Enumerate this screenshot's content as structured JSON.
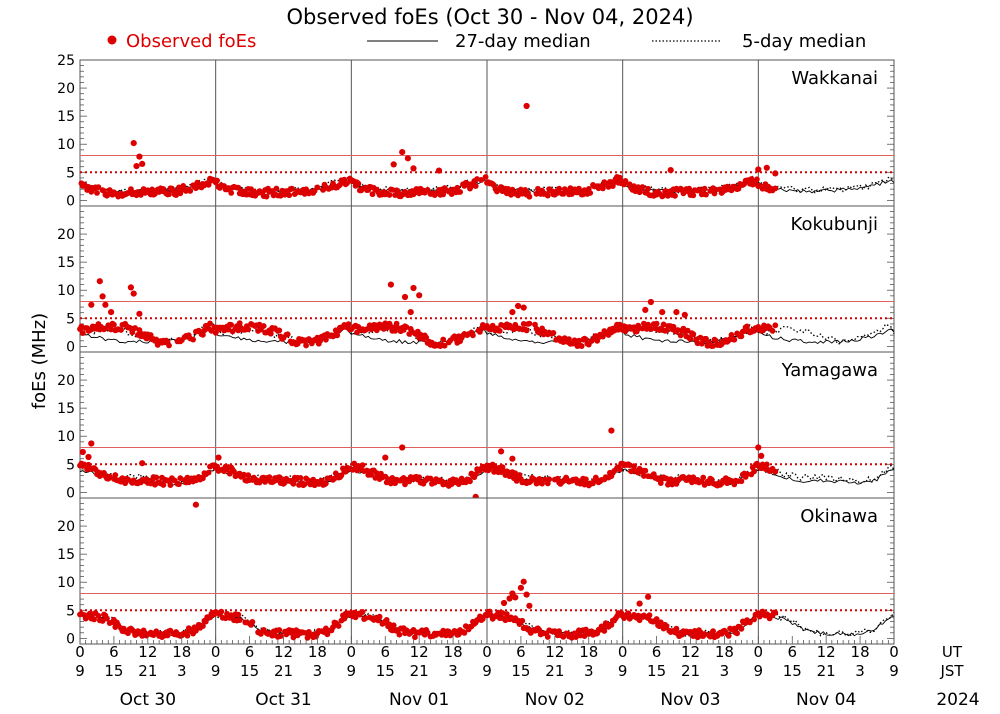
{
  "chart_data": {
    "type": "scatter",
    "title": "Observed foEs (Oct 30 - Nov 04, 2024)",
    "ylabel": "foEs (MHz)",
    "ylim": [
      -1,
      25
    ],
    "ytick_labels_top": [
      "0",
      "5",
      "10",
      "15",
      "20",
      "25"
    ],
    "ytick_labels_other": [
      "0",
      "5",
      "10",
      "15",
      "20"
    ],
    "ytick_values_top": [
      0,
      5,
      10,
      15,
      20,
      25
    ],
    "ytick_values_other": [
      0,
      5,
      10,
      15,
      20
    ],
    "reference_lines": [
      {
        "value": 8,
        "style": "solid",
        "color": "#e06060"
      },
      {
        "value": 5,
        "style": "dotted",
        "color": "#d00000"
      }
    ],
    "xlim_hours": [
      0,
      144
    ],
    "ut_tick_labels": [
      "0",
      "6",
      "12",
      "18",
      "0",
      "6",
      "12",
      "18",
      "0",
      "6",
      "12",
      "18",
      "0",
      "6",
      "12",
      "18",
      "0",
      "6",
      "12",
      "18",
      "0",
      "6",
      "12",
      "18",
      "0"
    ],
    "jst_tick_labels": [
      "9",
      "15",
      "21",
      "3",
      "9",
      "15",
      "21",
      "3",
      "9",
      "15",
      "21",
      "3",
      "9",
      "15",
      "21",
      "3",
      "9",
      "15",
      "21",
      "3",
      "9",
      "15",
      "21",
      "3",
      "9"
    ],
    "ut_label": "UT",
    "jst_label": "JST",
    "dates": [
      "Oct 30",
      "Oct 31",
      "Nov 01",
      "Nov 02",
      "Nov 03",
      "Nov 04"
    ],
    "year": "2024",
    "legend": {
      "observed": "Observed foEs",
      "median27": "27-day median",
      "median5": "5-day median"
    },
    "colors": {
      "observed": "#dd0000",
      "median27": "#000000",
      "median5": "#000000"
    },
    "observed_until_hours": 123,
    "stations": [
      {
        "name": "Wakkanai",
        "median27": {
          "hours": [
            0,
            2,
            5,
            8,
            11,
            14,
            17,
            20,
            23,
            24
          ],
          "values": [
            3.0,
            2.2,
            1.8,
            1.6,
            1.7,
            1.8,
            2.0,
            2.6,
            3.4,
            3.5
          ]
        },
        "median5": {
          "hours": [
            0,
            2,
            5,
            8,
            11,
            14,
            17,
            20,
            23,
            24
          ],
          "values": [
            3.2,
            2.4,
            2.0,
            1.7,
            1.8,
            1.8,
            2.1,
            2.8,
            3.8,
            3.8
          ]
        },
        "observed_profile": {
          "hours": [
            0,
            2,
            5,
            8,
            11,
            14,
            17,
            20,
            23,
            24
          ],
          "values": [
            3.0,
            2.1,
            1.4,
            1.3,
            1.5,
            1.5,
            1.6,
            2.4,
            3.5,
            3.6
          ]
        },
        "outliers": [
          {
            "t": 9.5,
            "v": 10.2
          },
          {
            "t": 10.5,
            "v": 7.8
          },
          {
            "t": 11,
            "v": 6.5
          },
          {
            "t": 10,
            "v": 6.1
          },
          {
            "t": 55.5,
            "v": 6.4
          },
          {
            "t": 57,
            "v": 8.6
          },
          {
            "t": 58,
            "v": 7.5
          },
          {
            "t": 59,
            "v": 5.7
          },
          {
            "t": 63.5,
            "v": 5.3
          },
          {
            "t": 79,
            "v": 16.8
          },
          {
            "t": 104.5,
            "v": 5.4
          },
          {
            "t": 120,
            "v": 5.5
          },
          {
            "t": 121.5,
            "v": 5.8
          },
          {
            "t": 123,
            "v": 4.8
          }
        ]
      },
      {
        "name": "Kokubunji",
        "median27": {
          "hours": [
            0,
            2,
            5,
            8,
            11,
            14,
            17,
            20,
            23,
            24
          ],
          "values": [
            2.4,
            1.8,
            1.2,
            0.9,
            0.8,
            0.8,
            1.0,
            1.8,
            2.9,
            3.0
          ]
        },
        "median5": {
          "hours": [
            0,
            2,
            5,
            8,
            11,
            14,
            17,
            20,
            23,
            24
          ],
          "values": [
            2.8,
            2.6,
            3.0,
            2.8,
            1.8,
            1.0,
            1.0,
            2.2,
            3.6,
            3.8
          ]
        },
        "observed_profile": {
          "hours": [
            0,
            2,
            5,
            8,
            11,
            14,
            17,
            20,
            23,
            24
          ],
          "values": [
            3.0,
            3.2,
            3.6,
            3.4,
            2.4,
            0.8,
            0.6,
            1.8,
            3.4,
            3.6
          ]
        },
        "outliers": [
          {
            "t": 3.5,
            "v": 11.6
          },
          {
            "t": 4,
            "v": 8.9
          },
          {
            "t": 4.5,
            "v": 7.4
          },
          {
            "t": 5.5,
            "v": 6.1
          },
          {
            "t": 9,
            "v": 10.5
          },
          {
            "t": 9.5,
            "v": 9.4
          },
          {
            "t": 10.5,
            "v": 5.8
          },
          {
            "t": 2,
            "v": 7.4
          },
          {
            "t": 55,
            "v": 11.0
          },
          {
            "t": 57.5,
            "v": 8.8
          },
          {
            "t": 59,
            "v": 10.4
          },
          {
            "t": 60,
            "v": 9.1
          },
          {
            "t": 58.5,
            "v": 6.1
          },
          {
            "t": 76.5,
            "v": 6.1
          },
          {
            "t": 77.5,
            "v": 7.2
          },
          {
            "t": 78.5,
            "v": 6.9
          },
          {
            "t": 100,
            "v": 6.5
          },
          {
            "t": 101,
            "v": 7.9
          },
          {
            "t": 103,
            "v": 6.1
          },
          {
            "t": 105.5,
            "v": 6.1
          },
          {
            "t": 107,
            "v": 5.6
          }
        ]
      },
      {
        "name": "Yamagawa",
        "median27": {
          "hours": [
            0,
            2,
            5,
            8,
            11,
            14,
            17,
            20,
            23,
            24
          ],
          "values": [
            4.0,
            3.6,
            2.6,
            2.0,
            2.2,
            2.0,
            1.6,
            1.8,
            3.6,
            4.1
          ]
        },
        "median5": {
          "hours": [
            0,
            2,
            5,
            8,
            11,
            14,
            17,
            20,
            23,
            24
          ],
          "values": [
            4.4,
            4.0,
            3.0,
            2.6,
            2.8,
            2.4,
            2.0,
            2.2,
            4.0,
            4.6
          ]
        },
        "observed_profile": {
          "hours": [
            0,
            2,
            5,
            8,
            11,
            14,
            17,
            20,
            23,
            24
          ],
          "values": [
            4.6,
            4.2,
            2.8,
            2.0,
            2.2,
            2.0,
            1.8,
            2.0,
            4.0,
            4.8
          ]
        },
        "outliers": [
          {
            "t": 2,
            "v": 8.7
          },
          {
            "t": 0.5,
            "v": 7.2
          },
          {
            "t": 1.5,
            "v": 6.3
          },
          {
            "t": 11,
            "v": 5.2
          },
          {
            "t": 24.5,
            "v": 6.2
          },
          {
            "t": 54,
            "v": 6.2
          },
          {
            "t": 57,
            "v": 8.0
          },
          {
            "t": 70,
            "v": -0.8
          },
          {
            "t": 74.5,
            "v": 7.3
          },
          {
            "t": 76.5,
            "v": 6.0
          },
          {
            "t": 94,
            "v": 11.0
          },
          {
            "t": 120,
            "v": 8.0
          },
          {
            "t": 120.5,
            "v": 6.5
          }
        ]
      },
      {
        "name": "Okinawa",
        "median27": {
          "hours": [
            0,
            2,
            5,
            8,
            11,
            14,
            17,
            20,
            23,
            24
          ],
          "values": [
            4.2,
            4.0,
            3.4,
            1.6,
            1.0,
            0.8,
            0.8,
            1.2,
            3.6,
            4.2
          ]
        },
        "median5": {
          "hours": [
            0,
            2,
            5,
            8,
            11,
            14,
            17,
            20,
            23,
            24
          ],
          "values": [
            4.2,
            4.0,
            3.6,
            1.8,
            1.0,
            0.9,
            0.9,
            1.4,
            3.8,
            4.3
          ]
        },
        "observed_profile": {
          "hours": [
            0,
            2,
            5,
            8,
            11,
            14,
            17,
            20,
            23,
            24
          ],
          "values": [
            4.2,
            4.1,
            3.6,
            1.4,
            0.9,
            0.8,
            0.8,
            1.3,
            3.9,
            4.3
          ]
        },
        "outliers": [
          {
            "t": 20.5,
            "v": 23.8
          },
          {
            "t": 6.5,
            "v": 2.8
          },
          {
            "t": 75,
            "v": 6.3
          },
          {
            "t": 76,
            "v": 7.1
          },
          {
            "t": 76.5,
            "v": 8.0
          },
          {
            "t": 77,
            "v": 7.3
          },
          {
            "t": 78,
            "v": 9.0
          },
          {
            "t": 78.5,
            "v": 10.1
          },
          {
            "t": 79,
            "v": 7.8
          },
          {
            "t": 79.5,
            "v": 5.8
          },
          {
            "t": 100.5,
            "v": 7.4
          },
          {
            "t": 99,
            "v": 6.2
          }
        ]
      }
    ]
  }
}
